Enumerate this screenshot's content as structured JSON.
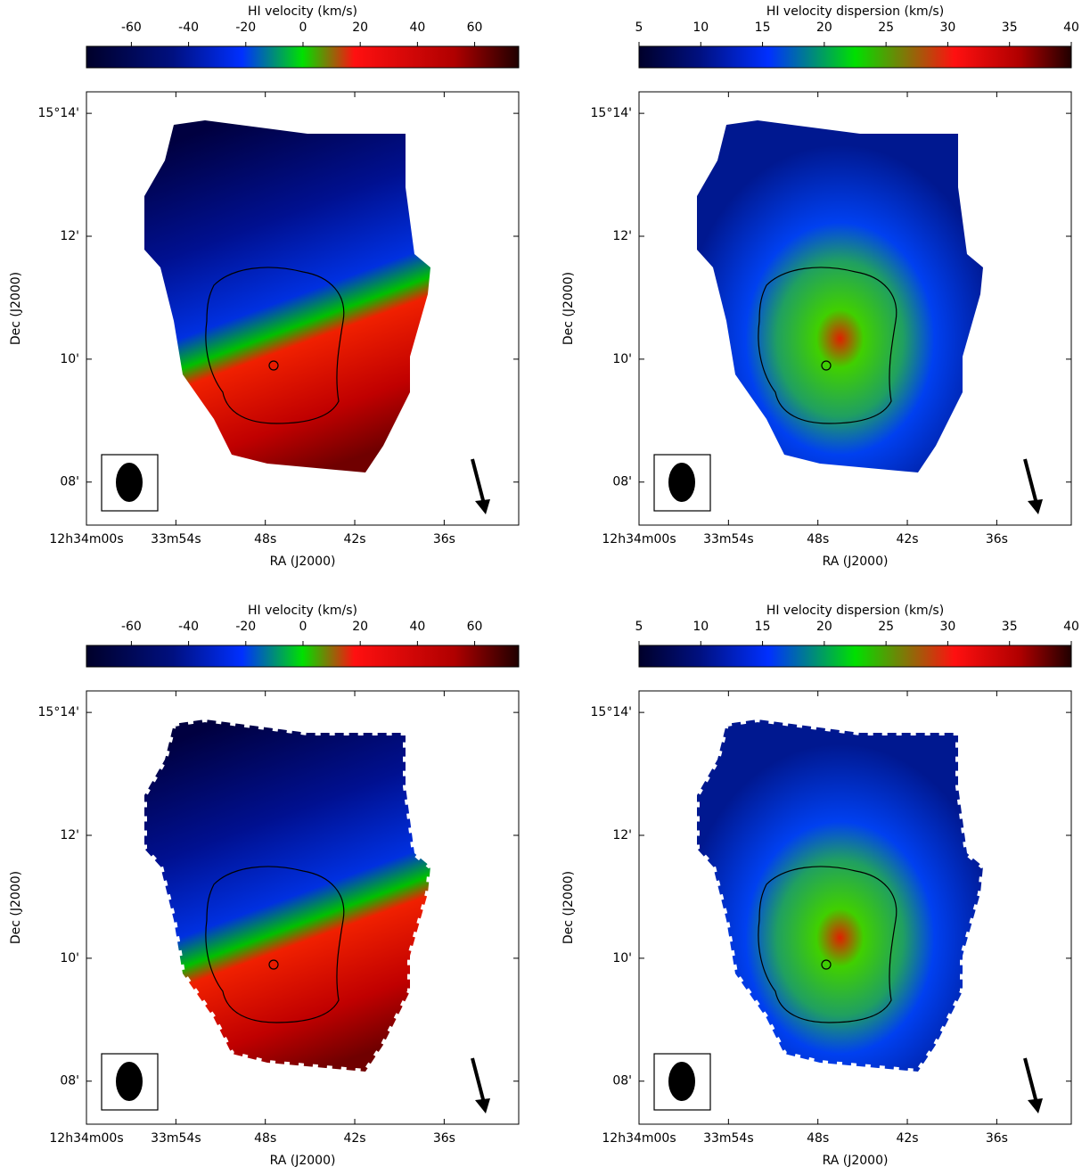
{
  "chart_data": [
    {
      "type": "map",
      "colorbar_label": "HI velocity (km/s)",
      "zlim": [
        -75.7,
        75.4
      ],
      "zticks": [
        -60,
        -40,
        -20,
        0,
        20,
        40,
        60
      ],
      "xlabel": "RA (J2000)",
      "ylabel": "Dec (J2000)",
      "xlim": [
        60,
        31
      ],
      "xticks": [
        {
          "value": 60,
          "label": "12h34m00s"
        },
        {
          "value": 54,
          "label": "33m54s"
        },
        {
          "value": 48,
          "label": "48s"
        },
        {
          "value": 42,
          "label": "42s"
        },
        {
          "value": 36,
          "label": "36s"
        }
      ],
      "ylim": [
        7.3,
        14.35
      ],
      "yticks": [
        {
          "value": 14,
          "label": "15°14'"
        },
        {
          "value": 12,
          "label": "12'"
        },
        {
          "value": 10,
          "label": "10'"
        },
        {
          "value": 8,
          "label": "08'"
        }
      ]
    },
    {
      "type": "map",
      "colorbar_label": "HI velocity dispersion (km/s)",
      "zlim": [
        5,
        40
      ],
      "zticks": [
        5,
        10,
        15,
        20,
        25,
        30,
        35,
        40
      ],
      "xlabel": "RA (J2000)",
      "ylabel": "Dec (J2000)",
      "xlim": [
        60,
        31
      ],
      "xticks": [
        {
          "value": 60,
          "label": "12h34m00s"
        },
        {
          "value": 54,
          "label": "33m54s"
        },
        {
          "value": 48,
          "label": "48s"
        },
        {
          "value": 42,
          "label": "42s"
        },
        {
          "value": 36,
          "label": "36s"
        }
      ],
      "ylim": [
        7.3,
        14.35
      ],
      "yticks": [
        {
          "value": 14,
          "label": "15°14'"
        },
        {
          "value": 12,
          "label": "12'"
        },
        {
          "value": 10,
          "label": "10'"
        },
        {
          "value": 8,
          "label": "08'"
        }
      ]
    },
    {
      "type": "map",
      "colorbar_label": "HI velocity (km/s)",
      "zlim": [
        -75.7,
        75.4
      ],
      "zticks": [
        -60,
        -40,
        -20,
        0,
        20,
        40,
        60
      ],
      "xlabel": "RA (J2000)",
      "ylabel": "Dec (J2000)",
      "xlim": [
        60,
        31
      ],
      "xticks": [
        {
          "value": 60,
          "label": "12h34m00s"
        },
        {
          "value": 54,
          "label": "33m54s"
        },
        {
          "value": 48,
          "label": "48s"
        },
        {
          "value": 42,
          "label": "42s"
        },
        {
          "value": 36,
          "label": "36s"
        }
      ],
      "ylim": [
        7.3,
        14.35
      ],
      "yticks": [
        {
          "value": 14,
          "label": "15°14'"
        },
        {
          "value": 12,
          "label": "12'"
        },
        {
          "value": 10,
          "label": "10'"
        },
        {
          "value": 8,
          "label": "08'"
        }
      ]
    },
    {
      "type": "map",
      "colorbar_label": "HI velocity dispersion (km/s)",
      "zlim": [
        5,
        40
      ],
      "zticks": [
        5,
        10,
        15,
        20,
        25,
        30,
        35,
        40
      ],
      "xlabel": "RA (J2000)",
      "ylabel": "Dec (J2000)",
      "xlim": [
        60,
        31
      ],
      "xticks": [
        {
          "value": 60,
          "label": "12h34m00s"
        },
        {
          "value": 54,
          "label": "33m54s"
        },
        {
          "value": 48,
          "label": "48s"
        },
        {
          "value": 42,
          "label": "42s"
        },
        {
          "value": 36,
          "label": "36s"
        }
      ],
      "ylim": [
        7.3,
        14.35
      ],
      "yticks": [
        {
          "value": 14,
          "label": "15°14'"
        },
        {
          "value": 12,
          "label": "12'"
        },
        {
          "value": 10,
          "label": "10'"
        },
        {
          "value": 8,
          "label": "08'"
        }
      ]
    }
  ]
}
